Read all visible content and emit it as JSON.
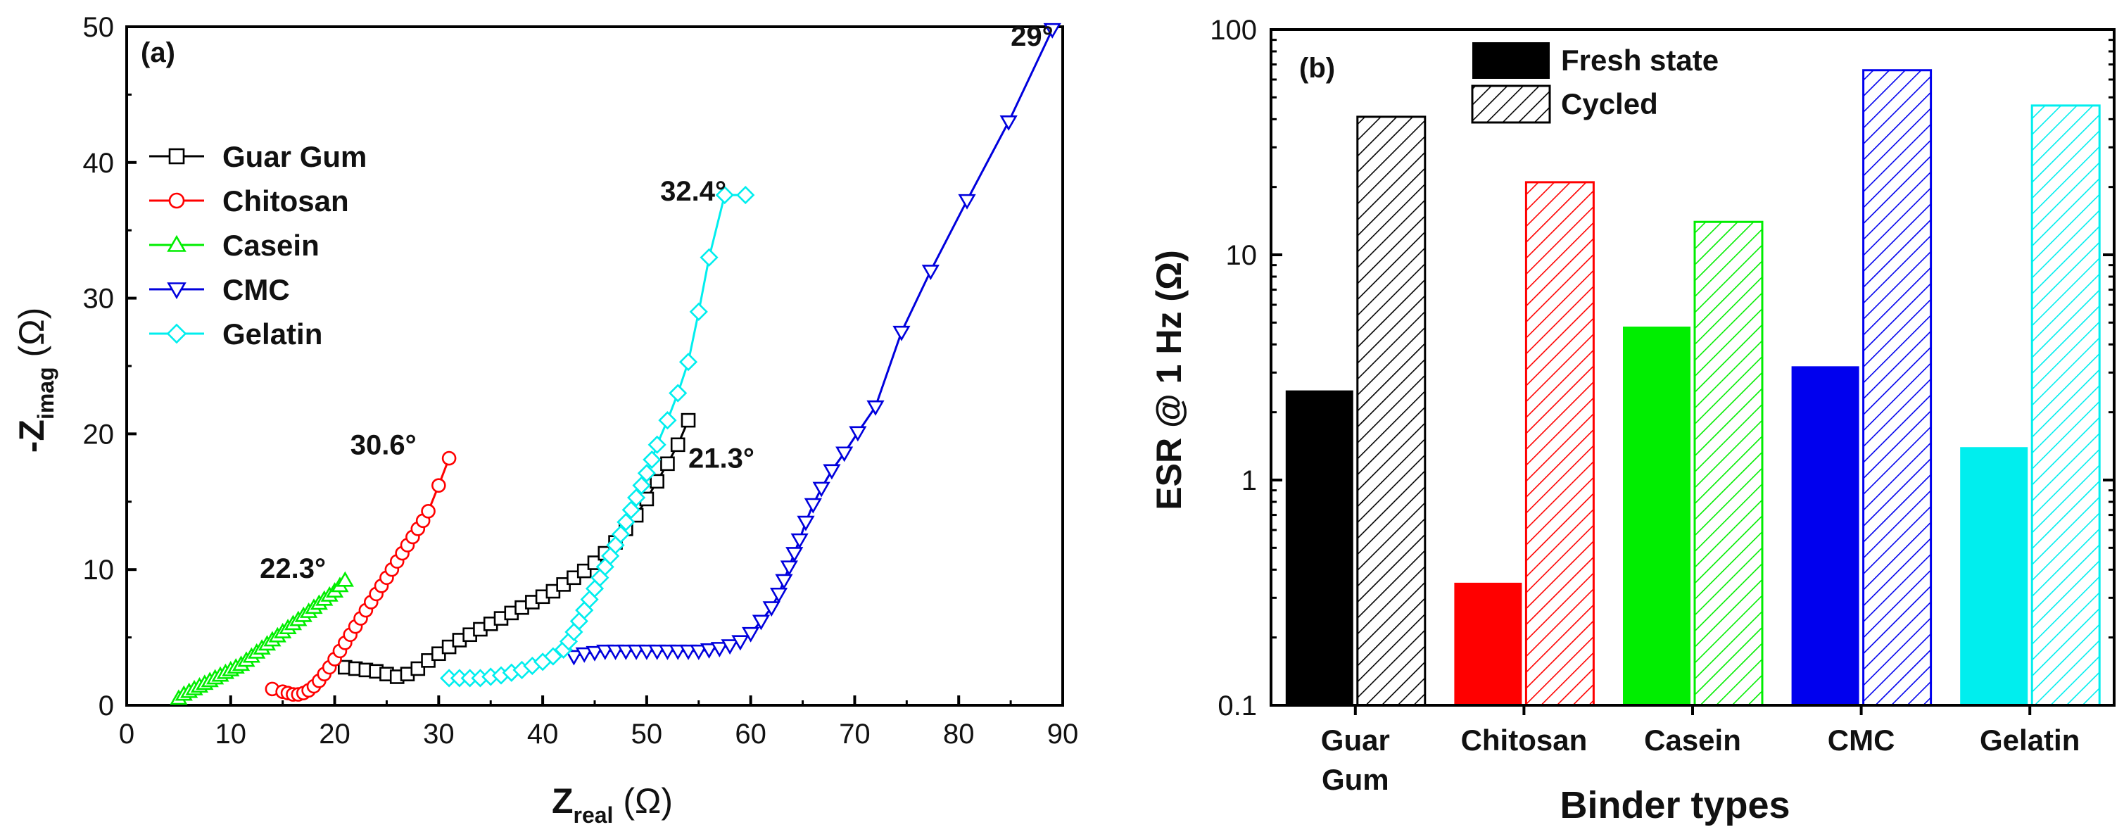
{
  "chart_data": [
    {
      "panel": "(a)",
      "type": "scatter",
      "xlabel": "Z",
      "xlabel_sub": "real",
      "xlabel_unit": "(Ω)",
      "ylabel": "-Z",
      "ylabel_sub": "imag",
      "ylabel_unit": "(Ω)",
      "xlim": [
        0,
        90
      ],
      "ylim": [
        0,
        50
      ],
      "xticks": [
        0,
        10,
        20,
        30,
        40,
        50,
        60,
        70,
        80,
        90
      ],
      "yticks": [
        0,
        10,
        20,
        30,
        40,
        50
      ],
      "legend_position": "upper-left",
      "series": [
        {
          "name": "Guar Gum",
          "color": "#000000",
          "marker": "square",
          "x": [
            21.0,
            22.0,
            23.0,
            24.0,
            25.0,
            26.0,
            27.0,
            28.0,
            29.0,
            30.0,
            31.0,
            32.0,
            33.0,
            34.0,
            35.0,
            36.0,
            37.0,
            38.0,
            39.0,
            40.0,
            41.0,
            42.0,
            43.0,
            44.0,
            45.0,
            46.0,
            47.0,
            48.0,
            49.0,
            50.0,
            51.0,
            52.0,
            53.0,
            54.0
          ],
          "y": [
            2.8,
            2.7,
            2.6,
            2.5,
            2.3,
            2.1,
            2.3,
            2.7,
            3.3,
            3.8,
            4.3,
            4.8,
            5.2,
            5.6,
            6.0,
            6.4,
            6.8,
            7.2,
            7.6,
            8.0,
            8.4,
            8.9,
            9.4,
            9.9,
            10.5,
            11.2,
            12.0,
            13.0,
            14.0,
            15.2,
            16.5,
            17.8,
            19.2,
            21.0
          ]
        },
        {
          "name": "Chitosan",
          "color": "#ff0000",
          "marker": "circle",
          "x": [
            14.0,
            15.0,
            15.5,
            16.0,
            16.5,
            17.0,
            17.5,
            18.0,
            18.5,
            19.0,
            19.5,
            20.0,
            20.5,
            21.0,
            21.5,
            22.0,
            22.5,
            23.0,
            23.5,
            24.0,
            24.5,
            25.0,
            25.5,
            26.0,
            26.5,
            27.0,
            27.5,
            28.0,
            28.5,
            29.0,
            30.0,
            31.0
          ],
          "y": [
            1.2,
            1.0,
            0.9,
            0.8,
            0.8,
            0.9,
            1.1,
            1.4,
            1.8,
            2.3,
            2.8,
            3.4,
            4.0,
            4.6,
            5.2,
            5.8,
            6.4,
            7.0,
            7.6,
            8.2,
            8.8,
            9.4,
            10.0,
            10.6,
            11.2,
            11.8,
            12.4,
            13.0,
            13.6,
            14.3,
            16.2,
            18.2
          ]
        },
        {
          "name": "Casein",
          "color": "#00ee00",
          "marker": "triangle-up",
          "x": [
            5.0,
            5.5,
            6.0,
            6.5,
            7.0,
            7.5,
            8.0,
            8.5,
            9.0,
            9.5,
            10.0,
            10.5,
            11.0,
            11.5,
            12.0,
            12.5,
            13.0,
            13.5,
            14.0,
            14.5,
            15.0,
            15.5,
            16.0,
            16.5,
            17.0,
            17.5,
            18.0,
            18.5,
            19.0,
            19.5,
            20.0,
            20.5,
            21.0
          ],
          "y": [
            0.5,
            0.8,
            1.0,
            1.2,
            1.4,
            1.6,
            1.8,
            2.0,
            2.2,
            2.4,
            2.6,
            2.8,
            3.0,
            3.3,
            3.6,
            3.9,
            4.2,
            4.5,
            4.8,
            5.1,
            5.4,
            5.7,
            6.0,
            6.3,
            6.6,
            6.9,
            7.2,
            7.5,
            7.8,
            8.1,
            8.4,
            8.8,
            9.2
          ]
        },
        {
          "name": "CMC",
          "color": "#0000dd",
          "marker": "triangle-down",
          "x": [
            43.0,
            44.0,
            45.0,
            46.0,
            47.0,
            48.0,
            49.0,
            50.0,
            51.0,
            52.0,
            53.0,
            54.0,
            55.0,
            56.0,
            57.0,
            58.0,
            59.0,
            60.0,
            61.0,
            62.0,
            62.7,
            63.2,
            63.7,
            64.2,
            64.7,
            65.3,
            66.0,
            66.8,
            67.8,
            69.0,
            70.3,
            72.0,
            74.5,
            77.3,
            80.8,
            84.8,
            89.0
          ],
          "y": [
            3.6,
            3.8,
            3.9,
            4.0,
            4.0,
            4.0,
            4.0,
            4.0,
            4.0,
            4.0,
            4.0,
            4.0,
            4.0,
            4.1,
            4.2,
            4.4,
            4.7,
            5.3,
            6.2,
            7.2,
            8.2,
            9.2,
            10.2,
            11.2,
            12.2,
            13.5,
            14.8,
            16.0,
            17.3,
            18.6,
            20.1,
            22.0,
            27.5,
            32.0,
            37.2,
            43.0,
            49.8
          ]
        },
        {
          "name": "Gelatin",
          "color": "#00eeee",
          "marker": "diamond",
          "x": [
            31.0,
            32.0,
            33.0,
            34.0,
            35.0,
            36.0,
            37.0,
            38.0,
            39.0,
            40.0,
            41.0,
            42.0,
            42.5,
            43.0,
            43.5,
            44.0,
            44.5,
            45.0,
            45.5,
            46.0,
            46.5,
            47.0,
            47.5,
            48.0,
            48.5,
            49.0,
            49.5,
            50.0,
            50.5,
            51.0,
            52.0,
            53.0,
            54.0,
            55.0,
            56.0,
            57.5,
            59.5
          ],
          "y": [
            2.0,
            2.0,
            2.0,
            2.0,
            2.1,
            2.2,
            2.4,
            2.6,
            2.9,
            3.2,
            3.6,
            4.1,
            4.7,
            5.4,
            6.2,
            7.0,
            7.8,
            8.6,
            9.4,
            10.2,
            11.0,
            11.8,
            12.6,
            13.5,
            14.4,
            15.3,
            16.2,
            17.1,
            18.1,
            19.2,
            21.0,
            23.0,
            25.3,
            29.0,
            33.0,
            37.6,
            37.6
          ]
        }
      ],
      "annotations": [
        {
          "text": "29°",
          "x": 85.0,
          "y": 48.6
        },
        {
          "text": "32.4°",
          "x": 51.3,
          "y": 37.2
        },
        {
          "text": "30.6°",
          "x": 21.5,
          "y": 18.5
        },
        {
          "text": "21.3°",
          "x": 54.0,
          "y": 17.5
        },
        {
          "text": "22.3°",
          "x": 12.8,
          "y": 9.4
        }
      ]
    },
    {
      "panel": "(b)",
      "type": "bar",
      "yscale": "log",
      "ylim": [
        0.1,
        100
      ],
      "yticks": [
        0.1,
        1,
        10,
        100
      ],
      "ytick_labels": [
        "0.1",
        "1",
        "10",
        "100"
      ],
      "xlabel": "Binder types",
      "ylabel": "ESR @ 1 Hz (Ω)",
      "categories": [
        "Guar Gum",
        "Chitosan",
        "Casein",
        "CMC",
        "Gelatin"
      ],
      "category_labels": [
        [
          "Guar",
          "Gum"
        ],
        [
          "Chitosan"
        ],
        [
          "Casein"
        ],
        [
          "CMC"
        ],
        [
          "Gelatin"
        ]
      ],
      "colors": [
        "#000000",
        "#ff0000",
        "#00ee00",
        "#0000ee",
        "#00eeee"
      ],
      "legend_position": "top-center",
      "series": [
        {
          "name": "Fresh state",
          "style": "solid",
          "values": [
            2.5,
            0.35,
            4.8,
            3.2,
            1.4
          ]
        },
        {
          "name": "Cycled",
          "style": "hatched",
          "values": [
            41,
            21,
            14,
            66,
            46
          ]
        }
      ]
    }
  ]
}
